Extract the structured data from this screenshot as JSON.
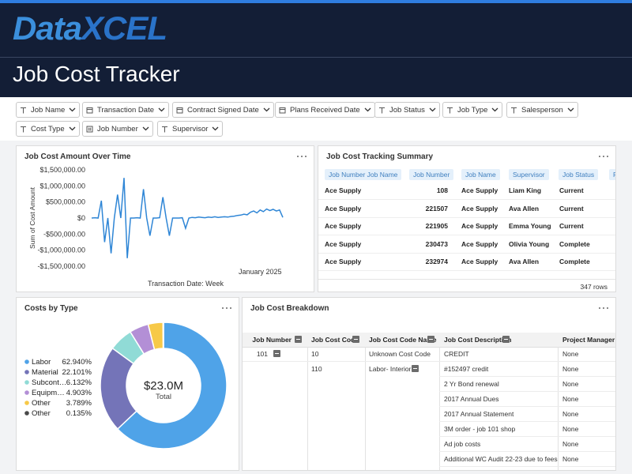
{
  "header": {
    "logo": [
      "Data",
      "XCEL"
    ],
    "title": "Job Cost Tracker"
  },
  "filters": [
    {
      "label": "Job Name",
      "kind": "text"
    },
    {
      "label": "Transaction Date",
      "kind": "date"
    },
    {
      "label": "Contract Signed Date",
      "kind": "date"
    },
    {
      "label": "Plans Received Date",
      "kind": "date"
    },
    {
      "label": "Job Status",
      "kind": "text"
    },
    {
      "label": "Job Type",
      "kind": "text"
    },
    {
      "label": "Salesperson",
      "kind": "text"
    },
    {
      "label": "Cost Type",
      "kind": "text"
    },
    {
      "label": "Job Number",
      "kind": "number"
    },
    {
      "label": "Supervisor",
      "kind": "text"
    }
  ],
  "chart_data": [
    {
      "type": "line",
      "title": "Job Cost Amount Over Time",
      "y_label": "Sum of Cost Amount",
      "x_label": "Transaction Date: Week",
      "categories": [
        null,
        null,
        null,
        null,
        null,
        null,
        null,
        null,
        null,
        null,
        null,
        null,
        null,
        null,
        null,
        null,
        null,
        null,
        null,
        null,
        null,
        null,
        null,
        null,
        null,
        null,
        null,
        null,
        null,
        null,
        null,
        null,
        null,
        null,
        null,
        null,
        null,
        null,
        null,
        null,
        null,
        null,
        null,
        null,
        null,
        null,
        null,
        null,
        null,
        null,
        null,
        null,
        "January 2025",
        null,
        null,
        null,
        null,
        null,
        null,
        null
      ],
      "values": [
        0,
        10000,
        0,
        540000,
        -750000,
        0,
        -1100000,
        0,
        730000,
        0,
        1250000,
        -1250000,
        0,
        0,
        10000,
        0,
        900000,
        0,
        -550000,
        0,
        0,
        10000,
        650000,
        0,
        -550000,
        0,
        0,
        0,
        10000,
        -320000,
        0,
        20000,
        10000,
        30000,
        20000,
        10000,
        30000,
        20000,
        40000,
        20000,
        30000,
        40000,
        30000,
        50000,
        60000,
        80000,
        90000,
        120000,
        100000,
        180000,
        220000,
        160000,
        250000,
        200000,
        280000,
        230000,
        270000,
        220000,
        250000,
        20000
      ],
      "color": "#2f86d6",
      "ylim": [
        -1500000,
        1500000
      ],
      "yticks": [
        {
          "value": 1500000,
          "label": "$1,500,000.00"
        },
        {
          "value": 1000000,
          "label": "$1,000,000.00"
        },
        {
          "value": 500000,
          "label": "$500,000.00"
        },
        {
          "value": 0,
          "label": "$0"
        },
        {
          "value": -500000,
          "label": "-$500,000.00"
        },
        {
          "value": -1000000,
          "label": "-$1,000,000.00"
        },
        {
          "value": -1500000,
          "label": "-$1,500,000.00"
        }
      ]
    },
    {
      "type": "pie",
      "title": "Costs by Type",
      "center_value": "$23.0M",
      "center_label": "Total",
      "categories": [
        "Labor",
        "Material",
        "Subcont…",
        "Equipm…",
        "Other",
        "Other"
      ],
      "values": [
        62.94,
        22.101,
        6.132,
        4.903,
        3.789,
        0.135
      ],
      "value_labels": [
        "62.940%",
        "22.101%",
        "6.132%",
        "4.903%",
        "3.789%",
        "0.135%"
      ],
      "colors": [
        "#4fa3e8",
        "#7474b8",
        "#90dbd6",
        "#b38fd6",
        "#f7c948",
        "#4a4a4a"
      ]
    }
  ],
  "summary_table": {
    "title": "Job Cost Tracking Summary",
    "columns": [
      "Job Number Job Name",
      "Job Number",
      "Job Name",
      "Supervisor",
      "Job Status",
      "P"
    ],
    "rows": [
      [
        "Ace Supply",
        "108",
        "Ace Supply",
        "Liam King",
        "Current"
      ],
      [
        "Ace Supply",
        "221507",
        "Ace Supply",
        "Ava Allen",
        "Current"
      ],
      [
        "Ace Supply",
        "221905",
        "Ace Supply",
        "Emma Young",
        "Current"
      ],
      [
        "Ace Supply",
        "230473",
        "Ace Supply",
        "Olivia Young",
        "Complete"
      ],
      [
        "Ace Supply",
        "232974",
        "Ace Supply",
        "Ava Allen",
        "Complete"
      ]
    ],
    "row_count": "347 rows"
  },
  "breakdown_table": {
    "title": "Job Cost Breakdown",
    "columns": [
      "Job Number",
      "Job Cost Code",
      "Job Cost Code Name",
      "Job Cost Description",
      "Project Manager"
    ],
    "rows": [
      [
        "101",
        "10",
        "Unknown Cost Code",
        "CREDIT",
        "None"
      ],
      [
        null,
        "110",
        "Labor- Interior",
        "#152497 credit",
        "None"
      ],
      [
        null,
        null,
        null,
        "2 Yr Bond renewal",
        "None"
      ],
      [
        null,
        null,
        null,
        "2017 Annual Dues",
        "None"
      ],
      [
        null,
        null,
        null,
        "2017 Annual Statement",
        "None"
      ],
      [
        null,
        null,
        null,
        "3M order - job 101 shop",
        "None"
      ],
      [
        null,
        null,
        null,
        "Ad job costs",
        "None"
      ],
      [
        null,
        null,
        null,
        "Additional WC Audit 22-23 due to fees",
        "None"
      ]
    ]
  }
}
